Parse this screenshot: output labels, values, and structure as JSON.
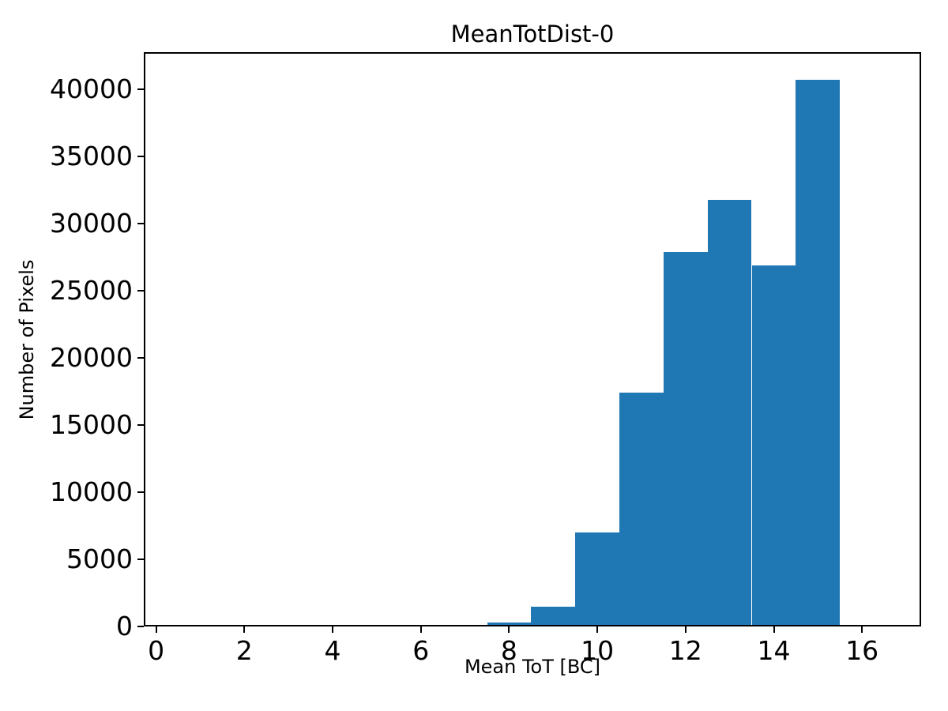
{
  "chart_data": {
    "type": "bar",
    "title": "MeanTotDist-0",
    "xlabel": "Mean ToT [BC]",
    "ylabel": "Number of Pixels",
    "bar_color": "#1f77b4",
    "bin_edges": [
      7.5,
      8.5,
      9.5,
      10.5,
      11.5,
      12.5,
      13.5,
      14.5,
      15.5
    ],
    "values": [
      300,
      1500,
      7000,
      17400,
      27900,
      31800,
      26900,
      40700
    ],
    "xticks": [
      0,
      2,
      4,
      6,
      8,
      10,
      12,
      14,
      16
    ],
    "yticks": [
      0,
      5000,
      10000,
      15000,
      20000,
      25000,
      30000,
      35000,
      40000
    ],
    "xlim": [
      -0.28,
      17.34
    ],
    "ylim": [
      0,
      42780
    ],
    "grid": false,
    "legend_visible": false
  }
}
